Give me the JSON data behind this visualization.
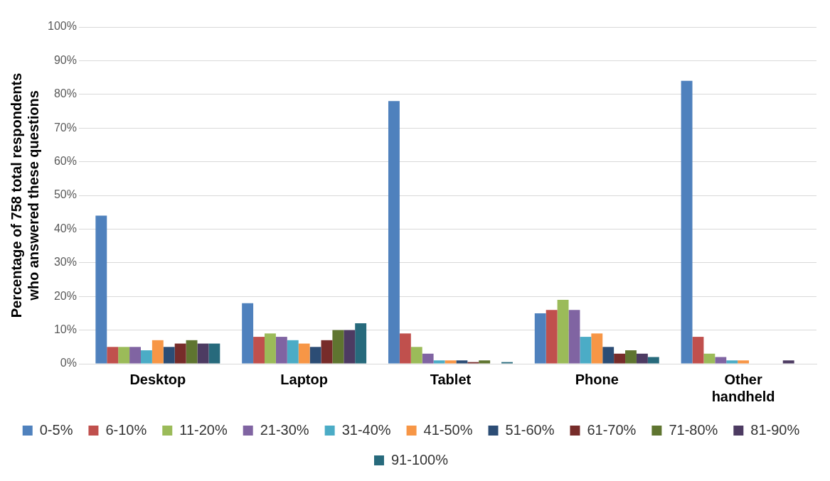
{
  "chart_data": {
    "type": "bar",
    "ylabel": "Percentage of 758 total respondents who answered these questions",
    "categories": [
      "Desktop",
      "Laptop",
      "Tablet",
      "Phone",
      "Other handheld"
    ],
    "series": [
      {
        "name": "0-5%",
        "color": "#4f81bd",
        "values": [
          44,
          18,
          78,
          15,
          84
        ]
      },
      {
        "name": "6-10%",
        "color": "#c0504d",
        "values": [
          5,
          8,
          9,
          16,
          8
        ]
      },
      {
        "name": "11-20%",
        "color": "#9bbb59",
        "values": [
          5,
          9,
          5,
          19,
          3
        ]
      },
      {
        "name": "21-30%",
        "color": "#8064a2",
        "values": [
          5,
          8,
          3,
          16,
          2
        ]
      },
      {
        "name": "31-40%",
        "color": "#4bacc6",
        "values": [
          4,
          7,
          1,
          8,
          1
        ]
      },
      {
        "name": "41-50%",
        "color": "#f79646",
        "values": [
          7,
          6,
          1,
          9,
          1
        ]
      },
      {
        "name": "51-60%",
        "color": "#2c4d75",
        "values": [
          5,
          5,
          1,
          5,
          0
        ]
      },
      {
        "name": "61-70%",
        "color": "#772c2a",
        "values": [
          6,
          7,
          0.5,
          3,
          0
        ]
      },
      {
        "name": "71-80%",
        "color": "#5f7530",
        "values": [
          7,
          10,
          1,
          4,
          0
        ]
      },
      {
        "name": "81-90%",
        "color": "#4d3b62",
        "values": [
          6,
          10,
          0,
          3,
          1
        ]
      },
      {
        "name": "91-100%",
        "color": "#276a7c",
        "values": [
          6,
          12,
          0.5,
          2,
          0
        ]
      }
    ],
    "ylim": [
      0,
      100
    ],
    "yticks": [
      {
        "value": 0,
        "label": "0%"
      },
      {
        "value": 10,
        "label": "10%"
      },
      {
        "value": 20,
        "label": "20%"
      },
      {
        "value": 30,
        "label": "30%"
      },
      {
        "value": 40,
        "label": "40%"
      },
      {
        "value": 50,
        "label": "50%"
      },
      {
        "value": 60,
        "label": "60%"
      },
      {
        "value": 70,
        "label": "70%"
      },
      {
        "value": 80,
        "label": "80%"
      },
      {
        "value": 90,
        "label": "90%"
      },
      {
        "value": 100,
        "label": "100%"
      }
    ],
    "grid": "y",
    "legend": "bottom"
  }
}
